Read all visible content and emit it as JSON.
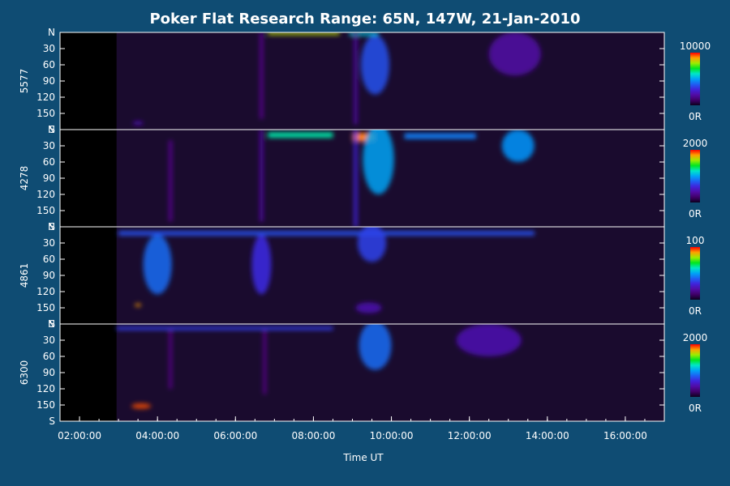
{
  "chart_data": {
    "type": "heatmap",
    "title": "Poker Flat Research Range: 65N, 147W, 21-Jan-2010",
    "xlabel": "Time UT",
    "x_ticks": [
      "02:00:00",
      "04:00:00",
      "06:00:00",
      "08:00:00",
      "10:00:00",
      "12:00:00",
      "14:00:00",
      "16:00:00"
    ],
    "xlim": [
      "01:30:00",
      "17:00:00"
    ],
    "data_start": "02:57:00",
    "panels": [
      {
        "ylabel": "5577",
        "y_ticks": [
          "N",
          "30",
          "60",
          "90",
          "120",
          "150",
          "S"
        ],
        "colorbar": {
          "max": "10000",
          "min": "0R"
        },
        "features": [
          {
            "type": "band",
            "t0": "06:50",
            "t1": "08:40",
            "y": 2,
            "w": 5,
            "level": 0.82
          },
          {
            "type": "band",
            "t0": "08:55",
            "t1": "09:40",
            "y": 3,
            "w": 6,
            "level": 0.55
          },
          {
            "type": "blob",
            "t": "09:35",
            "y": 60,
            "dt": 22,
            "dy": 55,
            "level": 0.38
          },
          {
            "type": "blob",
            "t": "13:10",
            "y": 40,
            "dt": 40,
            "dy": 40,
            "level": 0.2
          },
          {
            "type": "vbar",
            "t": "06:40",
            "y0": 0,
            "y1": 160,
            "level": 0.16
          },
          {
            "type": "vbar",
            "t": "09:05",
            "y0": 0,
            "y1": 170,
            "level": 0.2
          },
          {
            "type": "blob",
            "t": "03:30",
            "y": 168,
            "dt": 8,
            "dy": 4,
            "level": 0.22
          }
        ]
      },
      {
        "ylabel": "4278",
        "y_ticks": [
          "N",
          "30",
          "60",
          "90",
          "120",
          "150",
          "S"
        ],
        "colorbar": {
          "max": "2000",
          "min": "0R"
        },
        "features": [
          {
            "type": "band",
            "t0": "06:50",
            "t1": "08:30",
            "y": 10,
            "w": 10,
            "level": 0.62
          },
          {
            "type": "band",
            "t0": "09:00",
            "t1": "09:35",
            "y": 14,
            "w": 16,
            "level": 0.92
          },
          {
            "type": "blob",
            "t": "09:40",
            "y": 55,
            "dt": 24,
            "dy": 65,
            "level": 0.5
          },
          {
            "type": "band",
            "t0": "10:20",
            "t1": "12:10",
            "y": 12,
            "w": 10,
            "level": 0.45
          },
          {
            "type": "blob",
            "t": "13:15",
            "y": 30,
            "dt": 25,
            "dy": 30,
            "level": 0.48
          },
          {
            "type": "vbar",
            "t": "04:20",
            "y0": 20,
            "y1": 170,
            "level": 0.16
          },
          {
            "type": "vbar",
            "t": "06:40",
            "y0": 0,
            "y1": 170,
            "level": 0.2
          },
          {
            "type": "vbar",
            "t": "09:05",
            "y0": 0,
            "y1": 180,
            "level": 0.3
          }
        ]
      },
      {
        "ylabel": "4861",
        "y_ticks": [
          "N",
          "30",
          "60",
          "90",
          "120",
          "150",
          "S"
        ],
        "colorbar": {
          "max": "100",
          "min": "0R"
        },
        "features": [
          {
            "type": "band",
            "t0": "03:00",
            "t1": "13:40",
            "y": 12,
            "w": 8,
            "level": 0.38
          },
          {
            "type": "blob",
            "t": "04:00",
            "y": 70,
            "dt": 22,
            "dy": 55,
            "level": 0.42
          },
          {
            "type": "blob",
            "t": "06:40",
            "y": 70,
            "dt": 15,
            "dy": 55,
            "level": 0.32
          },
          {
            "type": "blob",
            "t": "09:30",
            "y": 30,
            "dt": 22,
            "dy": 35,
            "level": 0.36
          },
          {
            "type": "blob",
            "t": "09:25",
            "y": 150,
            "dt": 20,
            "dy": 10,
            "level": 0.22
          },
          {
            "type": "blob",
            "t": "03:30",
            "y": 145,
            "dt": 5,
            "dy": 3,
            "level": 0.9
          }
        ]
      },
      {
        "ylabel": "6300",
        "y_ticks": [
          "N",
          "30",
          "60",
          "90",
          "120",
          "150",
          "S"
        ],
        "colorbar": {
          "max": "2000",
          "min": "0R"
        },
        "features": [
          {
            "type": "band",
            "t0": "02:57",
            "t1": "08:30",
            "y": 8,
            "w": 6,
            "level": 0.35
          },
          {
            "type": "blob",
            "t": "03:35",
            "y": 152,
            "dt": 15,
            "dy": 5,
            "level": 0.95
          },
          {
            "type": "blob",
            "t": "09:35",
            "y": 40,
            "dt": 25,
            "dy": 45,
            "level": 0.42
          },
          {
            "type": "blob",
            "t": "12:30",
            "y": 30,
            "dt": 50,
            "dy": 30,
            "level": 0.22
          },
          {
            "type": "vbar",
            "t": "04:20",
            "y0": 10,
            "y1": 120,
            "level": 0.14
          },
          {
            "type": "vbar",
            "t": "06:45",
            "y0": 10,
            "y1": 130,
            "level": 0.14
          }
        ]
      }
    ]
  },
  "colors": {
    "background": "#0f4c73",
    "panel_fill": "#1a0b2e",
    "no_data": "#000000",
    "axes": "#ffffff"
  }
}
